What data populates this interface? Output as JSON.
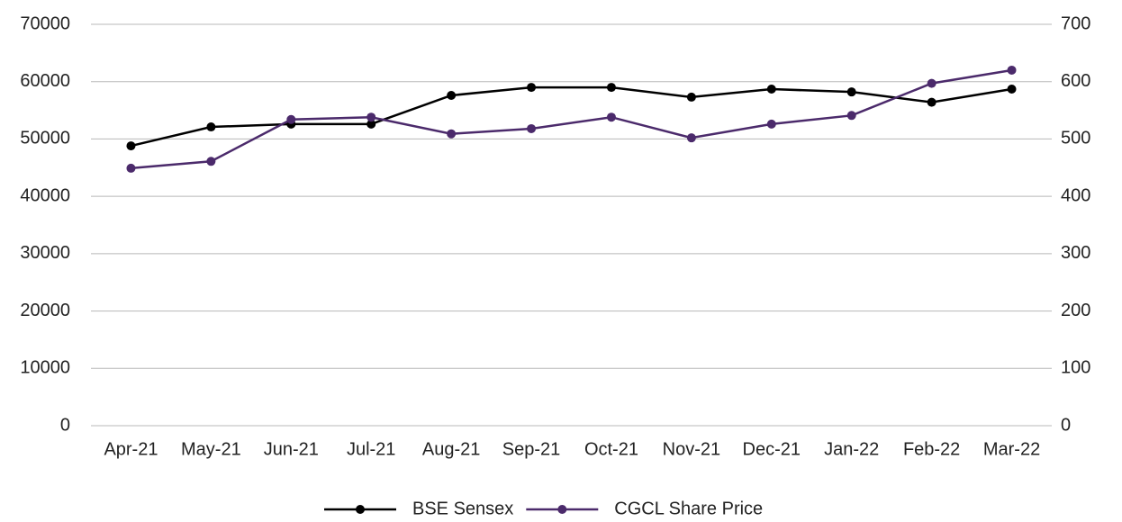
{
  "chart_data": {
    "type": "line",
    "categories": [
      "Apr-21",
      "May-21",
      "Jun-21",
      "Jul-21",
      "Aug-21",
      "Sep-21",
      "Oct-21",
      "Nov-21",
      "Dec-21",
      "Jan-22",
      "Feb-22",
      "Mar-22"
    ],
    "series": [
      {
        "name": "BSE Sensex",
        "color": "#000000",
        "values": [
          48800,
          52100,
          52600,
          52600,
          57600,
          59000,
          59000,
          57300,
          58700,
          58200,
          56400,
          58700
        ]
      },
      {
        "name": "CGCL Share Price",
        "color": "#4b2a6b",
        "axis": "y2",
        "values": [
          449,
          461,
          534,
          538,
          509,
          518,
          538,
          502,
          526,
          541,
          597,
          620
        ]
      }
    ],
    "ylim": [
      0,
      70000
    ],
    "yticks": [
      0,
      10000,
      20000,
      30000,
      40000,
      50000,
      60000,
      70000
    ],
    "y2lim": [
      0,
      700
    ],
    "y2ticks": [
      0,
      100,
      200,
      300,
      400,
      500,
      600,
      700
    ],
    "grid": true,
    "legend": "bottom"
  }
}
